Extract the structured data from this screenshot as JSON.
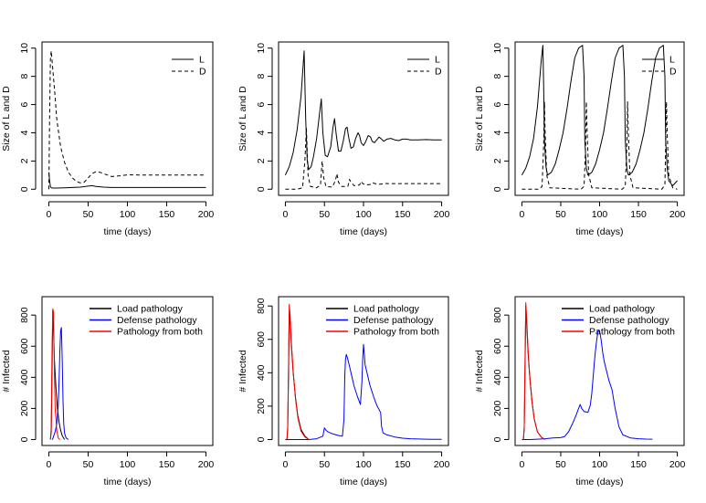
{
  "chart_data": [
    {
      "type": "line",
      "xlabel": "time (days)",
      "ylabel": "Size of L and D",
      "xlim": [
        0,
        200
      ],
      "ylim": [
        0,
        10
      ],
      "xticks": [
        "0",
        "50",
        "100",
        "150",
        "200"
      ],
      "yticks": [
        "0",
        "2",
        "4",
        "6",
        "8",
        "10"
      ],
      "legend": {
        "position": "top-right",
        "entries": [
          "L",
          "D"
        ]
      },
      "series": [
        {
          "name": "L",
          "color": "#000000",
          "dash": "solid",
          "x": [
            0,
            1,
            2,
            3,
            5,
            10,
            20,
            30,
            40,
            50,
            55,
            60,
            70,
            80,
            100,
            150,
            200
          ],
          "y": [
            1.2,
            0.6,
            0.2,
            0.1,
            0.08,
            0.08,
            0.1,
            0.12,
            0.15,
            0.22,
            0.25,
            0.2,
            0.15,
            0.12,
            0.12,
            0.12,
            0.12
          ]
        },
        {
          "name": "D",
          "color": "#000000",
          "dash": "dashed",
          "x": [
            0,
            1,
            2,
            3,
            5,
            8,
            10,
            15,
            20,
            25,
            30,
            35,
            40,
            45,
            50,
            55,
            60,
            65,
            70,
            80,
            90,
            100,
            120,
            150,
            200
          ],
          "y": [
            0,
            5,
            9.2,
            9.8,
            8.5,
            6.5,
            5.0,
            3.0,
            1.9,
            1.2,
            0.8,
            0.55,
            0.45,
            0.5,
            0.8,
            1.1,
            1.25,
            1.2,
            1.1,
            0.9,
            0.95,
            1.02,
            1.0,
            1.0,
            1.0
          ]
        }
      ]
    },
    {
      "type": "line",
      "xlabel": "time (days)",
      "ylabel": "Size of L and D",
      "xlim": [
        0,
        200
      ],
      "ylim": [
        0,
        10
      ],
      "xticks": [
        "0",
        "50",
        "100",
        "150",
        "200"
      ],
      "yticks": [
        "0",
        "2",
        "4",
        "6",
        "8",
        "10"
      ],
      "legend": {
        "position": "top-right",
        "entries": [
          "L",
          "D"
        ]
      },
      "series": [
        {
          "name": "L",
          "color": "#000000",
          "dash": "solid",
          "x": [
            0,
            5,
            10,
            15,
            20,
            24,
            26,
            28,
            30,
            33,
            36,
            40,
            44,
            46,
            48,
            51,
            54,
            58,
            61,
            63,
            65,
            68,
            71,
            74,
            77,
            79,
            81,
            84,
            87,
            90,
            93,
            95,
            97,
            100,
            103,
            106,
            109,
            111,
            114,
            117,
            120,
            123,
            126,
            130,
            135,
            140,
            145,
            150,
            155,
            160,
            170,
            180,
            190,
            200
          ],
          "y": [
            1.0,
            1.6,
            2.6,
            4.2,
            6.6,
            9.8,
            5.0,
            2.0,
            1.4,
            1.6,
            2.3,
            3.6,
            5.5,
            6.4,
            4.0,
            2.4,
            2.3,
            3.0,
            4.4,
            5.0,
            3.9,
            2.7,
            2.7,
            3.4,
            4.3,
            4.4,
            3.7,
            2.9,
            3.0,
            3.6,
            4.0,
            3.8,
            3.3,
            3.1,
            3.4,
            3.8,
            3.7,
            3.4,
            3.3,
            3.5,
            3.7,
            3.55,
            3.4,
            3.55,
            3.6,
            3.5,
            3.45,
            3.55,
            3.55,
            3.5,
            3.5,
            3.52,
            3.5,
            3.5
          ]
        },
        {
          "name": "D",
          "color": "#000000",
          "dash": "dashed",
          "x": [
            0,
            15,
            22,
            25,
            27,
            29,
            32,
            40,
            45,
            47,
            49,
            52,
            60,
            64,
            66,
            68,
            72,
            80,
            82,
            84,
            88,
            95,
            97,
            99,
            103,
            110,
            112,
            115,
            120,
            125,
            127,
            130,
            140,
            150,
            200
          ],
          "y": [
            0,
            0,
            0.1,
            2.0,
            4.3,
            1.0,
            0.2,
            0.1,
            0.3,
            2.0,
            0.8,
            0.2,
            0.15,
            0.6,
            1.1,
            0.5,
            0.2,
            0.2,
            0.7,
            0.5,
            0.25,
            0.3,
            0.55,
            0.4,
            0.3,
            0.35,
            0.45,
            0.4,
            0.35,
            0.38,
            0.42,
            0.4,
            0.4,
            0.4,
            0.4
          ]
        }
      ]
    },
    {
      "type": "line",
      "xlabel": "time (days)",
      "ylabel": "Size of L and D",
      "xlim": [
        0,
        200
      ],
      "ylim": [
        0,
        10
      ],
      "xticks": [
        "0",
        "50",
        "100",
        "150",
        "200"
      ],
      "yticks": [
        "0",
        "2",
        "4",
        "6",
        "8",
        "10"
      ],
      "legend": {
        "position": "top-right",
        "entries": [
          "L",
          "D"
        ]
      },
      "series": [
        {
          "name": "L",
          "color": "#000000",
          "dash": "solid",
          "x": [
            0,
            5,
            10,
            15,
            20,
            25,
            27,
            28,
            29,
            31,
            33,
            38,
            43,
            48,
            53,
            58,
            63,
            68,
            73,
            78,
            80,
            81,
            83,
            85,
            90,
            95,
            100,
            105,
            110,
            115,
            120,
            125,
            130,
            132,
            133,
            135,
            137,
            142,
            147,
            152,
            157,
            162,
            167,
            172,
            177,
            182,
            184,
            185,
            187,
            189,
            194,
            200
          ],
          "y": [
            1.0,
            1.5,
            2.3,
            3.6,
            5.8,
            9.2,
            10.2,
            7.5,
            3.5,
            1.6,
            1.0,
            1.2,
            1.8,
            2.8,
            4.0,
            5.7,
            7.6,
            9.3,
            10.0,
            10.2,
            8.0,
            3.5,
            1.5,
            1.0,
            1.2,
            1.8,
            2.8,
            4.0,
            5.7,
            7.6,
            9.3,
            10.0,
            10.2,
            8.0,
            3.5,
            1.5,
            1.0,
            1.2,
            1.8,
            2.8,
            4.0,
            5.7,
            7.6,
            9.3,
            10.0,
            10.2,
            8.0,
            3.5,
            1.5,
            0.6,
            0.25,
            0.6
          ]
        },
        {
          "name": "D",
          "color": "#000000",
          "dash": "dashed",
          "x": [
            0,
            22,
            26,
            28,
            29,
            30,
            32,
            36,
            76,
            80,
            82,
            83,
            84,
            86,
            90,
            129,
            133,
            135,
            136,
            137,
            139,
            143,
            180,
            184,
            185,
            186,
            187,
            189,
            194,
            200
          ],
          "y": [
            0,
            0,
            0.2,
            3.0,
            6.2,
            4.0,
            1.0,
            0.1,
            0,
            0.2,
            3.0,
            6.2,
            4.0,
            1.0,
            0.1,
            0,
            0.2,
            3.0,
            6.2,
            4.0,
            1.0,
            0.1,
            0,
            0.3,
            3.0,
            6.2,
            4.0,
            1.0,
            0.1,
            0
          ]
        }
      ]
    },
    {
      "type": "line",
      "xlabel": "time (days)",
      "ylabel": "# Infected",
      "xlim": [
        0,
        200
      ],
      "ylim": [
        0,
        880
      ],
      "xticks": [
        "0",
        "50",
        "100",
        "150",
        "200"
      ],
      "yticks": [
        "0",
        "200",
        "400",
        "600",
        "800"
      ],
      "legend": {
        "position": "top-right",
        "entries": [
          "Load pathology",
          "Defense pathology",
          "Pathology from both"
        ]
      },
      "series": [
        {
          "name": "Load pathology",
          "color": "#000000",
          "x": [
            2,
            3,
            4,
            5,
            6,
            7,
            9,
            11,
            13,
            15,
            17,
            20
          ],
          "y": [
            0,
            50,
            400,
            830,
            700,
            520,
            340,
            200,
            110,
            60,
            25,
            0
          ]
        },
        {
          "name": "Defense pathology",
          "color": "#0000ff",
          "x": [
            4,
            5,
            6,
            8,
            10,
            12,
            13,
            14,
            15,
            16,
            17,
            18,
            19,
            20,
            22,
            25
          ],
          "y": [
            0,
            5,
            20,
            50,
            100,
            220,
            380,
            560,
            700,
            720,
            520,
            250,
            100,
            40,
            10,
            0
          ]
        },
        {
          "name": "Pathology from both",
          "color": "#ff0000",
          "x": [
            2,
            3,
            4,
            5,
            6,
            7,
            8,
            10,
            12,
            14
          ],
          "y": [
            0,
            80,
            550,
            840,
            820,
            450,
            200,
            60,
            10,
            0
          ]
        }
      ]
    },
    {
      "type": "line",
      "xlabel": "time (days)",
      "ylabel": "# Infected",
      "xlim": [
        0,
        200
      ],
      "ylim": [
        0,
        820
      ],
      "xticks": [
        "0",
        "50",
        "100",
        "150",
        "200"
      ],
      "yticks": [
        "0",
        "200",
        "400",
        "600",
        "800"
      ],
      "legend": {
        "position": "top-right",
        "entries": [
          "Load pathology",
          "Defense pathology",
          "Pathology from both"
        ]
      },
      "series": [
        {
          "name": "Load pathology",
          "color": "#000000",
          "x": [
            2,
            3,
            4,
            5,
            6,
            8,
            10,
            13,
            16,
            20,
            25,
            30
          ],
          "y": [
            0,
            60,
            380,
            770,
            700,
            540,
            400,
            250,
            140,
            60,
            20,
            0
          ]
        },
        {
          "name": "Defense pathology",
          "color": "#0000ff",
          "x": [
            0,
            10,
            20,
            30,
            40,
            48,
            50,
            52,
            55,
            60,
            65,
            70,
            73,
            75,
            76,
            77,
            78,
            80,
            84,
            88,
            92,
            96,
            98,
            99,
            100,
            101,
            102,
            104,
            108,
            112,
            115,
            118,
            120,
            122,
            123,
            125,
            130,
            140,
            150,
            160,
            170,
            180,
            190,
            200
          ],
          "y": [
            0,
            0,
            0,
            0,
            5,
            20,
            70,
            55,
            45,
            35,
            28,
            22,
            20,
            120,
            380,
            480,
            510,
            480,
            400,
            320,
            260,
            210,
            350,
            480,
            570,
            510,
            450,
            410,
            330,
            270,
            230,
            195,
            180,
            160,
            80,
            40,
            28,
            15,
            8,
            5,
            3,
            2,
            1,
            1
          ]
        },
        {
          "name": "Pathology from both",
          "color": "#ff0000",
          "x": [
            2,
            3,
            4,
            5,
            6,
            8,
            10,
            13,
            16,
            20,
            25,
            30
          ],
          "y": [
            0,
            80,
            450,
            810,
            750,
            560,
            410,
            240,
            130,
            50,
            15,
            0
          ]
        }
      ]
    },
    {
      "type": "line",
      "xlabel": "time (days)",
      "ylabel": "# Infected",
      "xlim": [
        0,
        200
      ],
      "ylim": [
        0,
        880
      ],
      "xticks": [
        "0",
        "50",
        "100",
        "150",
        "200"
      ],
      "yticks": [
        "0",
        "200",
        "400",
        "600",
        "800"
      ],
      "legend": {
        "position": "top-right",
        "entries": [
          "Load pathology",
          "Defense pathology",
          "Pathology from both"
        ]
      },
      "series": [
        {
          "name": "Load pathology",
          "color": "#000000",
          "x": [
            2,
            3,
            4,
            5,
            6,
            8,
            10,
            13,
            16,
            20,
            25,
            30
          ],
          "y": [
            0,
            70,
            420,
            860,
            760,
            560,
            410,
            240,
            130,
            50,
            15,
            0
          ]
        },
        {
          "name": "Defense pathology",
          "color": "#0000ff",
          "x": [
            0,
            10,
            20,
            30,
            40,
            50,
            55,
            60,
            65,
            70,
            73,
            75,
            77,
            80,
            85,
            88,
            90,
            92,
            94,
            96,
            98,
            100,
            102,
            104,
            106,
            108,
            110,
            112,
            114,
            116,
            118,
            120,
            125,
            130,
            140,
            150,
            160,
            168
          ],
          "y": [
            0,
            0,
            2,
            5,
            10,
            12,
            20,
            50,
            100,
            160,
            200,
            225,
            200,
            180,
            175,
            220,
            300,
            420,
            540,
            630,
            700,
            700,
            640,
            560,
            500,
            460,
            420,
            380,
            350,
            320,
            260,
            200,
            80,
            30,
            10,
            5,
            3,
            2
          ]
        },
        {
          "name": "Pathology from both",
          "color": "#ff0000",
          "x": [
            2,
            3,
            4,
            5,
            6,
            8,
            10,
            13,
            16,
            20,
            25,
            30
          ],
          "y": [
            0,
            90,
            480,
            880,
            800,
            580,
            420,
            250,
            130,
            50,
            15,
            0
          ]
        }
      ]
    }
  ]
}
